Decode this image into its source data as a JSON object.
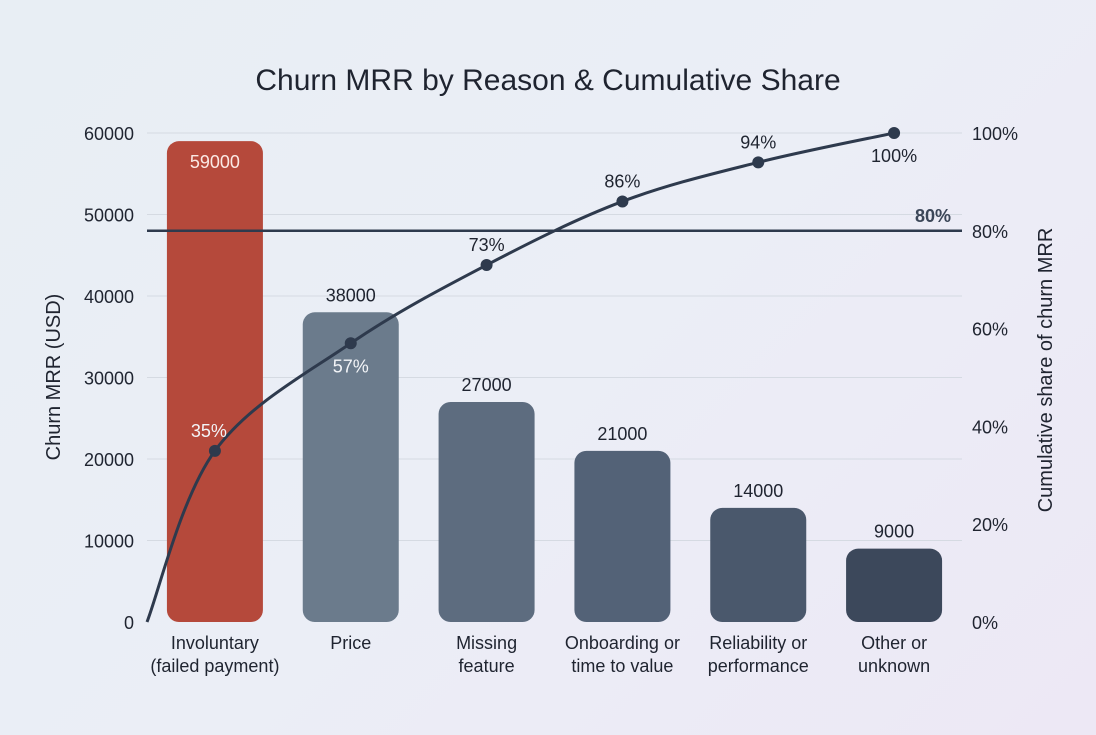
{
  "chart_data": {
    "type": "bar+line",
    "title": "Churn MRR by Reason & Cumulative Share",
    "ylabel": "Churn MRR (USD)",
    "y2label": "Cumulative share of churn MRR",
    "ylim": [
      0,
      60000
    ],
    "y2lim": [
      0,
      100
    ],
    "yticks": [
      "0",
      "10000",
      "20000",
      "30000",
      "40000",
      "50000",
      "60000"
    ],
    "y2ticks": [
      "0%",
      "20%",
      "40%",
      "60%",
      "80%",
      "100%"
    ],
    "grid": true,
    "categories": [
      [
        "Involuntary",
        "(failed payment)"
      ],
      [
        "Price"
      ],
      [
        "Missing",
        "feature"
      ],
      [
        "Onboarding or",
        "time to value"
      ],
      [
        "Reliability or",
        "performance"
      ],
      [
        "Other or",
        "unknown"
      ]
    ],
    "values": [
      59000,
      38000,
      27000,
      21000,
      14000,
      9000
    ],
    "value_labels": [
      "59000",
      "38000",
      "27000",
      "21000",
      "14000",
      "9000"
    ],
    "cumulative_share": [
      35,
      57,
      73,
      86,
      94,
      100
    ],
    "cumulative_labels": [
      "35%",
      "57%",
      "73%",
      "86%",
      "94%",
      "100%"
    ],
    "threshold": {
      "value": 80,
      "label": "80%"
    },
    "colors": {
      "highlight_bar": "#b5493b",
      "bars": [
        "#b5493b",
        "#6b7b8c",
        "#5d6c7f",
        "#536277",
        "#4a586c",
        "#3c485b"
      ],
      "line": "#2e3a4d",
      "grid": "#d5dae2",
      "text": "#1f2430"
    }
  }
}
